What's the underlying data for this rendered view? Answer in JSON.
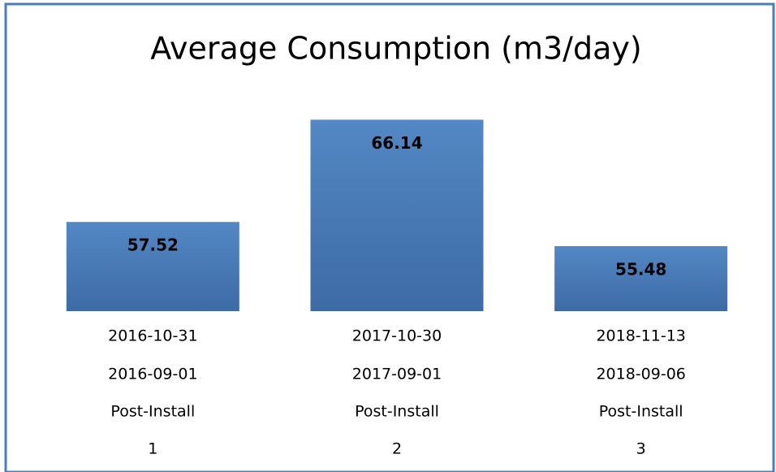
{
  "chart_data": {
    "type": "bar",
    "title": "Average Consumption (m3/day)",
    "categories": [
      [
        "2016-10-31",
        "2016-09-01",
        "Post-Install",
        "1"
      ],
      [
        "2017-10-30",
        "2017-09-01",
        "Post-Install",
        "2"
      ],
      [
        "2018-11-13",
        "2018-09-06",
        "Post-Install",
        "3"
      ]
    ],
    "values": [
      57.52,
      66.14,
      55.48
    ],
    "color": "#4a7ebb",
    "ylim": [
      50,
      70
    ]
  }
}
